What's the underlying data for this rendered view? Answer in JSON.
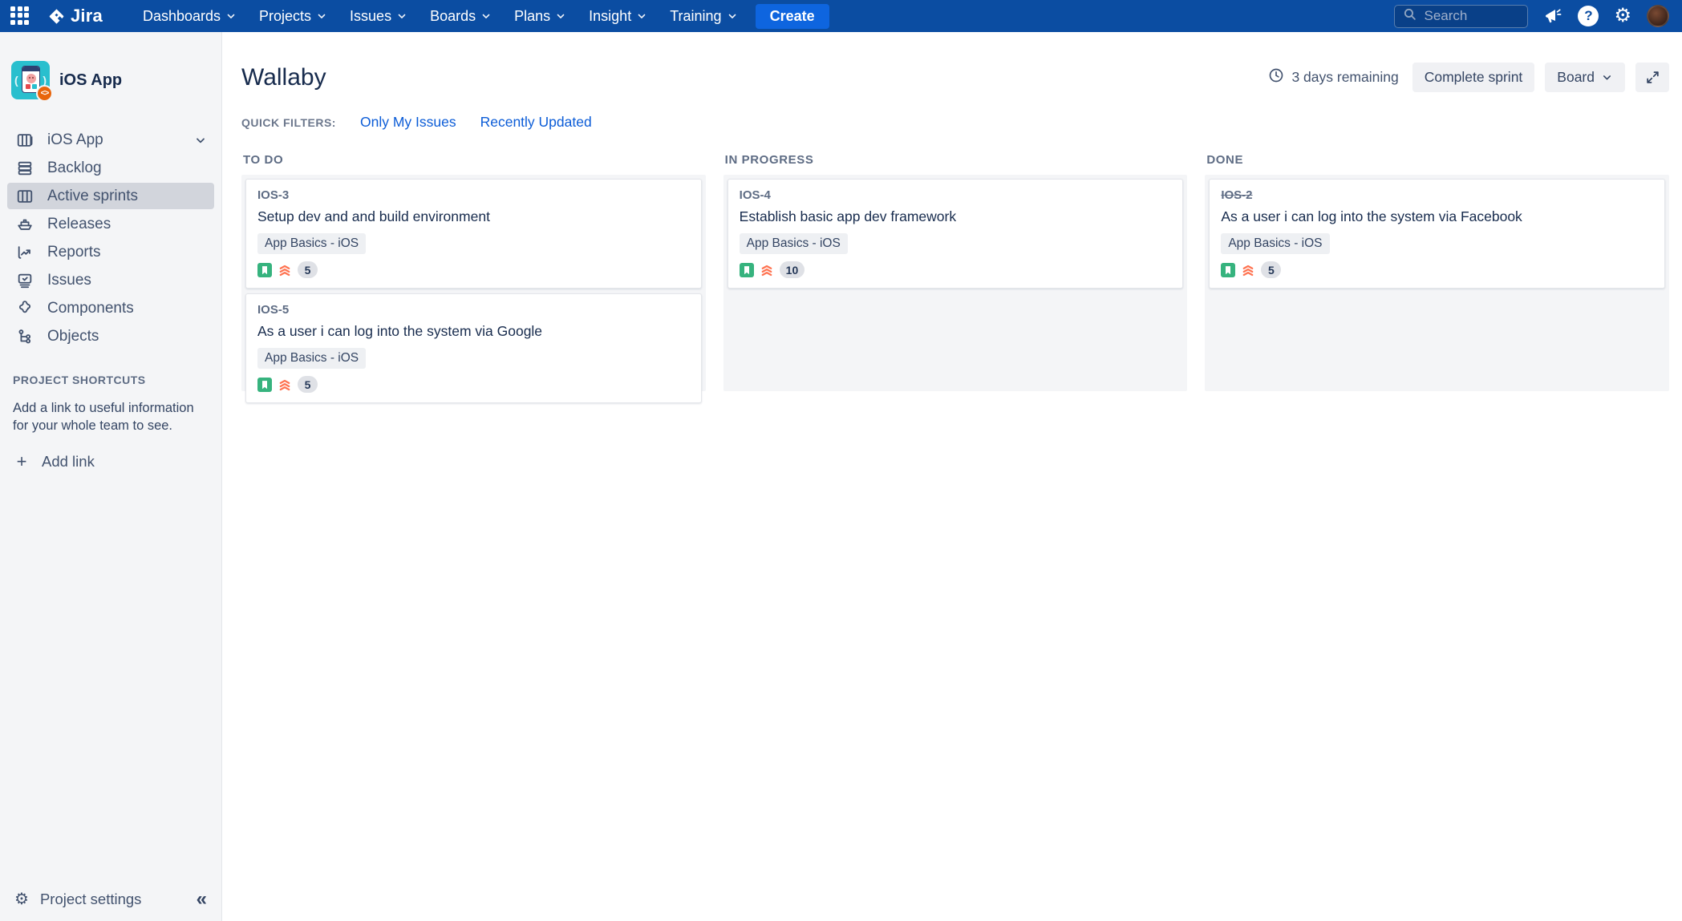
{
  "colors": {
    "navbar_bg": "#0B4DA2",
    "create_button_bg": "#0E65DF",
    "link_blue": "#0B5CD7",
    "story_green": "#36B37E",
    "priority_red": "#FF7452",
    "column_bg": "#F4F5F7",
    "sidebar_bg": "#F4F5F7",
    "selected_item_bg": "#D2D5DC",
    "project_avatar_teal": "#29BFCE",
    "project_badge_orange": "#E8650C"
  },
  "topnav": {
    "logo_text": "Jira",
    "menus": [
      {
        "label": "Dashboards"
      },
      {
        "label": "Projects"
      },
      {
        "label": "Issues"
      },
      {
        "label": "Boards"
      },
      {
        "label": "Plans"
      },
      {
        "label": "Insight"
      },
      {
        "label": "Training"
      }
    ],
    "create_label": "Create",
    "search_placeholder": "Search"
  },
  "sidebar": {
    "project_name": "iOS App",
    "items": [
      {
        "label": "iOS App",
        "icon": "board-icon",
        "chevron": true
      },
      {
        "label": "Backlog",
        "icon": "backlog-icon"
      },
      {
        "label": "Active sprints",
        "icon": "active-sprints-icon",
        "selected": true
      },
      {
        "label": "Releases",
        "icon": "releases-icon"
      },
      {
        "label": "Reports",
        "icon": "reports-icon"
      },
      {
        "label": "Issues",
        "icon": "issues-icon"
      },
      {
        "label": "Components",
        "icon": "components-icon"
      },
      {
        "label": "Objects",
        "icon": "objects-icon"
      }
    ],
    "shortcuts_heading": "PROJECT SHORTCUTS",
    "shortcuts_description": "Add a link to useful information for your whole team to see.",
    "add_link_label": "Add link",
    "settings_label": "Project settings",
    "collapse_glyph": "«"
  },
  "header": {
    "title": "Wallaby",
    "days_remaining": "3 days remaining",
    "complete_sprint_label": "Complete sprint",
    "view_label": "Board"
  },
  "quick_filters": {
    "label": "QUICK FILTERS:",
    "filters": [
      {
        "label": "Only My Issues"
      },
      {
        "label": "Recently Updated"
      }
    ]
  },
  "board": {
    "columns": [
      {
        "name": "TO DO",
        "cards": [
          {
            "key": "IOS-3",
            "summary": "Setup dev and and build environment",
            "epic": "App Basics - iOS",
            "estimate": "5",
            "resolved": false
          },
          {
            "key": "IOS-5",
            "summary": "As a user i can log into the system via Google",
            "epic": "App Basics - iOS",
            "estimate": "5",
            "resolved": false
          }
        ]
      },
      {
        "name": "IN PROGRESS",
        "cards": [
          {
            "key": "IOS-4",
            "summary": "Establish basic app dev framework",
            "epic": "App Basics - iOS",
            "estimate": "10",
            "resolved": false
          }
        ]
      },
      {
        "name": "DONE",
        "cards": [
          {
            "key": "IOS-2",
            "summary": "As a user i can log into the system via Facebook",
            "epic": "App Basics - iOS",
            "estimate": "5",
            "resolved": true
          }
        ]
      }
    ]
  }
}
